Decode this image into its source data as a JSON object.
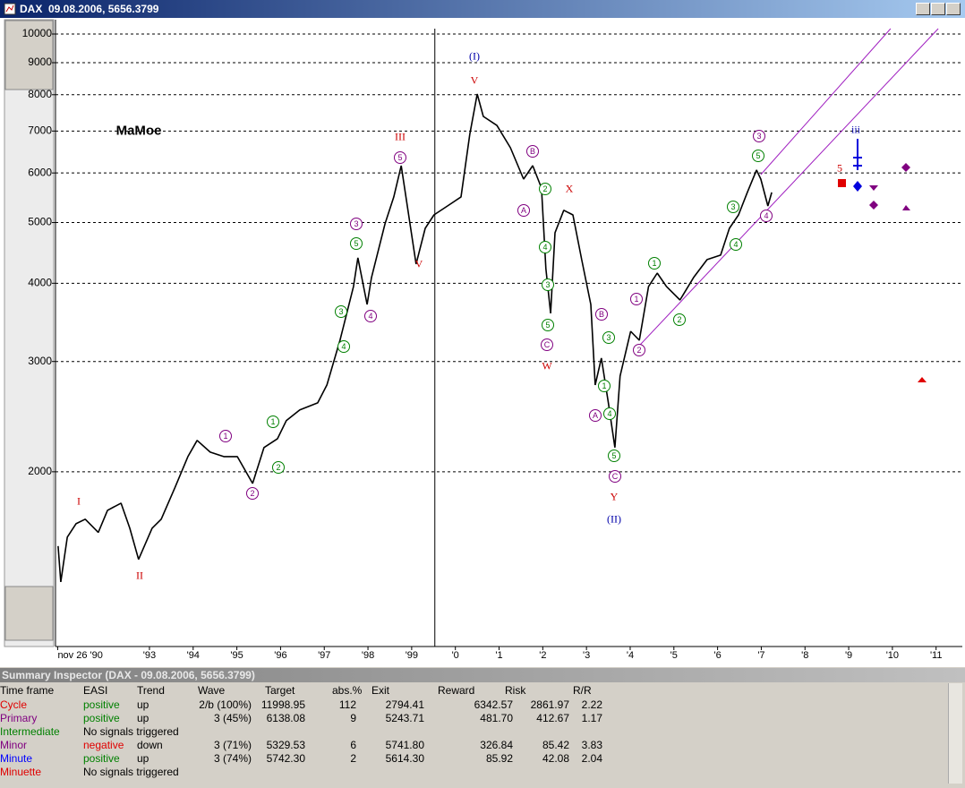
{
  "window": {
    "title": "DAX  09.08.2006, 5656.3799"
  },
  "chart_data": {
    "type": "line",
    "log_scale": true,
    "grid": true,
    "color": "#000000",
    "xlim": [
      1990.85,
      2011.6
    ],
    "ylim": [
      1052,
      10541
    ],
    "yticks": [
      2000,
      3000,
      4000,
      5000,
      6000,
      7000,
      8000,
      9000,
      10000
    ],
    "xticks": [
      {
        "value": 1990.9,
        "label": "nov 26 '90"
      },
      {
        "value": 1993,
        "label": "'93"
      },
      {
        "value": 1994,
        "label": "'94"
      },
      {
        "value": 1995,
        "label": "'95"
      },
      {
        "value": 1996,
        "label": "'96"
      },
      {
        "value": 1997,
        "label": "'97"
      },
      {
        "value": 1998,
        "label": "'98"
      },
      {
        "value": 1999,
        "label": "'99"
      },
      {
        "value": 2000,
        "label": "'0"
      },
      {
        "value": 2001,
        "label": "'1"
      },
      {
        "value": 2002,
        "label": "'2"
      },
      {
        "value": 2003,
        "label": "'3"
      },
      {
        "value": 2004,
        "label": "'4"
      },
      {
        "value": 2005,
        "label": "'5"
      },
      {
        "value": 2006,
        "label": "'6"
      },
      {
        "value": 2007,
        "label": "'7"
      },
      {
        "value": 2008,
        "label": "'8"
      },
      {
        "value": 2009,
        "label": "'9"
      },
      {
        "value": 2010,
        "label": "'10"
      },
      {
        "value": 2011,
        "label": "'11"
      }
    ],
    "x": [
      1990.91,
      1990.97,
      1991.12,
      1991.32,
      1991.53,
      1991.83,
      1992.04,
      1992.35,
      1992.55,
      1992.75,
      1993.06,
      1993.27,
      1993.58,
      1993.88,
      1994.09,
      1994.39,
      1994.7,
      1995.01,
      1995.36,
      1995.62,
      1995.93,
      1996.13,
      1996.44,
      1996.85,
      1997.06,
      1997.36,
      1997.67,
      1997.77,
      1997.98,
      1998.08,
      1998.39,
      1998.59,
      1998.76,
      1998.9,
      1999.1,
      1999.31,
      1999.51,
      1999.82,
      2000.13,
      2000.33,
      2000.5,
      2000.64,
      2000.95,
      2001.26,
      2001.56,
      2001.77,
      2001.97,
      2002.07,
      2002.18,
      2002.28,
      2002.48,
      2002.69,
      2002.89,
      2003.1,
      2003.2,
      2003.34,
      2003.5,
      2003.65,
      2003.77,
      2004.01,
      2004.21,
      2004.42,
      2004.62,
      2004.83,
      2005.14,
      2005.45,
      2005.76,
      2006.07,
      2006.27,
      2006.48,
      2006.68,
      2006.89,
      2006.99,
      2007.15,
      2007.24
    ],
    "values": [
      1522,
      1334,
      1573,
      1652,
      1680,
      1600,
      1736,
      1782,
      1625,
      1449,
      1625,
      1680,
      1885,
      2115,
      2245,
      2150,
      2115,
      2115,
      1916,
      2186,
      2259,
      2413,
      2511,
      2577,
      2752,
      3244,
      3953,
      4392,
      3700,
      4085,
      4977,
      5494,
      6164,
      5315,
      4292,
      4895,
      5142,
      5315,
      5494,
      6916,
      8020,
      7386,
      7146,
      6582,
      5866,
      6164,
      5677,
      4222,
      3581,
      4816,
      5231,
      5142,
      4363,
      3700,
      2752,
      3038,
      2577,
      2186,
      2844,
      3352,
      3244,
      3953,
      4152,
      3953,
      3762,
      4085,
      4363,
      4436,
      4895,
      5142,
      5585,
      6064,
      5866,
      5315,
      5585
    ],
    "cursor_x": 1999.53,
    "trendlines": [
      {
        "color": "#a020c0",
        "x": [
          2006.99,
          2009.96
        ],
        "values": [
          5964,
          10200
        ]
      },
      {
        "color": "#a020c0",
        "x": [
          2004.23,
          2011.05
        ],
        "values": [
          3192,
          10200
        ]
      }
    ],
    "wave_labels": [
      {
        "color": "#cc0000",
        "circled": false,
        "labels": [
          "I",
          "II",
          "III",
          "V",
          "V",
          "X",
          "W",
          "Y",
          "5"
        ]
      },
      {
        "color": "#0000aa",
        "circled": false,
        "labels": [
          "(I)",
          "(II)",
          "iii"
        ]
      },
      {
        "color": "#800080",
        "circled": true,
        "labels": [
          "1",
          "2",
          "3",
          "4",
          "5",
          "A",
          "B",
          "C",
          "A",
          "B",
          "C",
          "1",
          "2",
          "3",
          "4"
        ]
      },
      {
        "color": "#008000",
        "circled": true,
        "labels": [
          "1",
          "2",
          "3",
          "4",
          "5",
          "2",
          "4",
          "3",
          "5",
          "1",
          "3",
          "4",
          "5",
          "1",
          "2",
          "3",
          "4",
          "5"
        ]
      },
      {
        "color": "#000000",
        "circled": false,
        "labels": [
          "MaMoe"
        ]
      }
    ]
  },
  "summary": {
    "title": "Summary Inspector (DAX - 09.08.2006, 5656.3799)",
    "header": [
      "Time frame",
      "EASI",
      "Trend",
      "Wave",
      "Target",
      "abs.%",
      "Exit",
      "Reward",
      "Risk",
      "R/R"
    ],
    "rows": [
      [
        "Cycle",
        "positive",
        "up",
        "2/b (100%)",
        "11998.95",
        "112",
        "2794.41",
        "6342.57",
        "2861.97",
        "2.22"
      ],
      [
        "Primary",
        "positive",
        "up",
        "3 (45%)",
        "6138.08",
        "9",
        "5243.71",
        "481.70",
        "412.67",
        "1.17"
      ],
      [
        "Intermediate",
        "No signals triggered"
      ],
      [
        "Minor",
        "negative",
        "down",
        "3 (71%)",
        "5329.53",
        "6",
        "5741.80",
        "326.84",
        "85.42",
        "3.83"
      ],
      [
        "Minute",
        "positive",
        "up",
        "3 (74%)",
        "5742.30",
        "2",
        "5614.30",
        "85.92",
        "42.08",
        "2.04"
      ],
      [
        "Minuette",
        "No signals triggered"
      ]
    ]
  }
}
